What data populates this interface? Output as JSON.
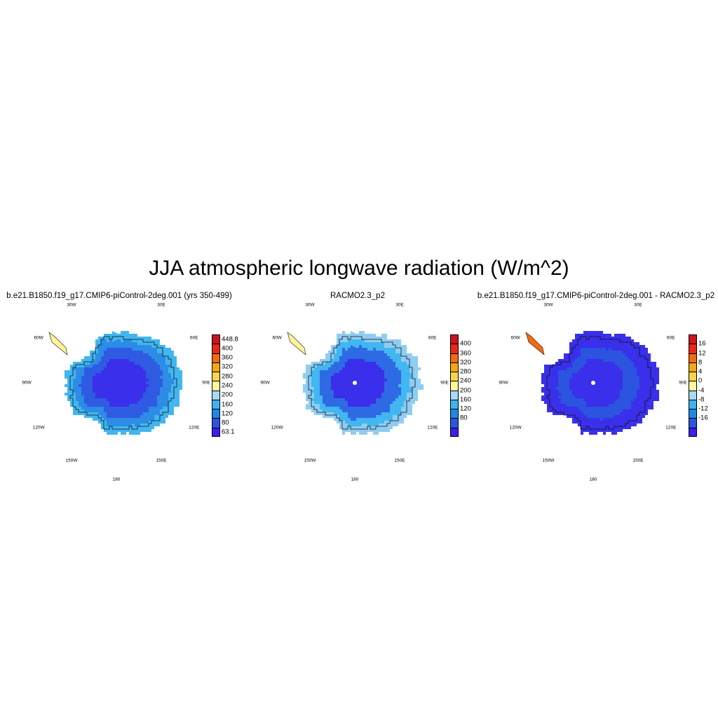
{
  "title": "JJA atmospheric longwave radiation (W/m^2)",
  "panels": [
    {
      "title": "b.e21.B1850.f19_g17.CMIP6-piControl-2deg.001 (yrs 350-499)",
      "lon_labels": [
        "30W",
        "30E",
        "60W",
        "60E",
        "90W",
        "90E",
        "120W",
        "120E",
        "150W",
        "150E",
        "180"
      ],
      "colorbar": {
        "labels": [
          "448.8",
          "400",
          "360",
          "320",
          "280",
          "240",
          "200",
          "160",
          "120",
          "80",
          "63.1"
        ],
        "colors": [
          "#c9151b",
          "#e8281a",
          "#f26a12",
          "#f8a515",
          "#fbd44a",
          "#fff599",
          "#a8d9f5",
          "#3fb3f0",
          "#1f86e8",
          "#2b54e0",
          "#3b1ef0"
        ]
      },
      "rings": [
        "#41b6f0",
        "#2d8ce6",
        "#2f5be3",
        "#3a2fea"
      ]
    },
    {
      "title": "RACMO2.3_p2",
      "lon_labels": [
        "30W",
        "30E",
        "60W",
        "60E",
        "90W",
        "90E",
        "120W",
        "120E",
        "150W",
        "150E",
        "180"
      ],
      "colorbar": {
        "labels": [
          "400",
          "360",
          "320",
          "280",
          "240",
          "200",
          "160",
          "120",
          "80"
        ],
        "colors": [
          "#c9151b",
          "#e8281a",
          "#f26a12",
          "#f8a515",
          "#fbd44a",
          "#fff599",
          "#a8d9f5",
          "#3fb3f0",
          "#1f86e8",
          "#2b54e0",
          "#3b1ef0"
        ]
      },
      "rings": [
        "#8fcdf2",
        "#41b6f0",
        "#2f6ae5",
        "#3a2fea"
      ]
    },
    {
      "title": "b.e21.B1850.f19_g17.CMIP6-piControl-2deg.001 - RACMO2.3_p2",
      "lon_labels": [
        "30W",
        "30E",
        "60W",
        "60E",
        "90W",
        "90E",
        "120W",
        "120E",
        "150W",
        "150E",
        "180"
      ],
      "colorbar": {
        "labels": [
          "16",
          "12",
          "8",
          "4",
          "0",
          "-4",
          "-8",
          "-12",
          "-16"
        ],
        "colors": [
          "#c9151b",
          "#e8281a",
          "#f26a12",
          "#f8a515",
          "#fbd44a",
          "#fff599",
          "#a8d9f5",
          "#3fb3f0",
          "#1f86e8",
          "#2b54e0",
          "#3b1ef0"
        ]
      },
      "rings": [
        "#3a2fea",
        "#3a2fea",
        "#2b54e0",
        "#3a2fea"
      ]
    }
  ]
}
